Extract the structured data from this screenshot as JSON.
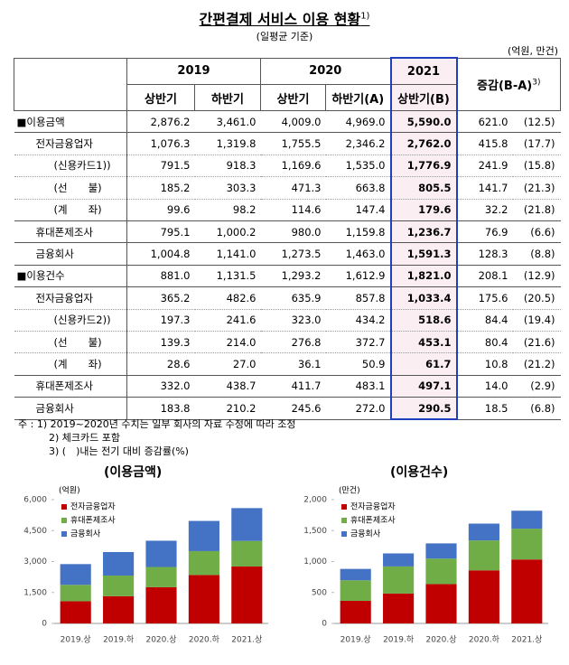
{
  "header": {
    "title": "간편결제 서비스 이용 현황",
    "title_note": "1)",
    "subtitle": "(일평균 기준)",
    "unit": "(억원, 만건)"
  },
  "table": {
    "years": [
      "2019",
      "2020",
      "2021"
    ],
    "halves": [
      "상반기",
      "하반기",
      "상반기",
      "하반기(A)",
      "상반기(B)"
    ],
    "change_header": "증감(B-A)",
    "change_note": "3)",
    "rows": [
      [
        "■이용금액",
        "2,876.2",
        "3,461.0",
        "4,009.0",
        "4,969.0",
        "5,590.0",
        "621.0",
        "(12.5)"
      ],
      [
        "전자금융업자",
        "1,076.3",
        "1,319.8",
        "1,755.5",
        "2,346.2",
        "2,762.0",
        "415.8",
        "(17.7)"
      ],
      [
        "(신용카드1))",
        "791.5",
        "918.3",
        "1,169.6",
        "1,535.0",
        "1,776.9",
        "241.9",
        "(15.8)"
      ],
      [
        "(선　　불)",
        "185.2",
        "303.3",
        "471.3",
        "663.8",
        "805.5",
        "141.7",
        "(21.3)"
      ],
      [
        "(계　　좌)",
        "99.6",
        "98.2",
        "114.6",
        "147.4",
        "179.6",
        "32.2",
        "(21.8)"
      ],
      [
        "휴대폰제조사",
        "795.1",
        "1,000.2",
        "980.0",
        "1,159.8",
        "1,236.7",
        "76.9",
        "(6.6)"
      ],
      [
        "금융회사",
        "1,004.8",
        "1,141.0",
        "1,273.5",
        "1,463.0",
        "1,591.3",
        "128.3",
        "(8.8)"
      ],
      [
        "■이용건수",
        "881.0",
        "1,131.5",
        "1,293.2",
        "1,612.9",
        "1,821.0",
        "208.1",
        "(12.9)"
      ],
      [
        "전자금융업자",
        "365.2",
        "482.6",
        "635.9",
        "857.8",
        "1,033.4",
        "175.6",
        "(20.5)"
      ],
      [
        "(신용카드2))",
        "197.3",
        "241.6",
        "323.0",
        "434.2",
        "518.6",
        "84.4",
        "(19.4)"
      ],
      [
        "(선　　불)",
        "139.3",
        "214.0",
        "276.8",
        "372.7",
        "453.1",
        "80.4",
        "(21.6)"
      ],
      [
        "(계　　좌)",
        "28.6",
        "27.0",
        "36.1",
        "50.9",
        "61.7",
        "10.8",
        "(21.2)"
      ],
      [
        "휴대폰제조사",
        "332.0",
        "438.7",
        "411.7",
        "483.1",
        "497.1",
        "14.0",
        "(2.9)"
      ],
      [
        "금융회사",
        "183.8",
        "210.2",
        "245.6",
        "272.0",
        "290.5",
        "18.5",
        "(6.8)"
      ]
    ]
  },
  "notes": [
    "주 : 1) 2019~2020년 수치는 일부 회사의 자료 수정에 따라 조정",
    "2) 체크카드 포함",
    "3) (　)내는 전기 대비 증감률(%)"
  ],
  "chart_data": [
    {
      "type": "bar",
      "stacked": true,
      "title": "(이용금액)",
      "unit_label": "(억원)",
      "categories": [
        "2019.상",
        "2019.하",
        "2020.상",
        "2020.하",
        "2021.상"
      ],
      "series": [
        {
          "name": "전자금융업자",
          "color": "#c00000",
          "values": [
            1076.3,
            1319.8,
            1755.5,
            2346.2,
            2762.0
          ]
        },
        {
          "name": "휴대폰제조사",
          "color": "#70ad47",
          "values": [
            795.1,
            1000.2,
            980.0,
            1159.8,
            1236.7
          ]
        },
        {
          "name": "금융회사",
          "color": "#4472c4",
          "values": [
            1004.8,
            1141.0,
            1273.5,
            1463.0,
            1591.3
          ]
        }
      ],
      "ylim": [
        0,
        6000
      ],
      "yticks": [
        0,
        {
          "value": 1500,
          "label": "1,500"
        },
        {
          "value": 3000,
          "label": "3,000"
        },
        {
          "value": 4500,
          "label": "4,500"
        },
        {
          "value": 6000,
          "label": "6,000"
        }
      ]
    },
    {
      "type": "bar",
      "stacked": true,
      "title": "(이용건수)",
      "unit_label": "(만건)",
      "categories": [
        "2019.상",
        "2019.하",
        "2020.상",
        "2020.하",
        "2021.상"
      ],
      "series": [
        {
          "name": "전자금융업자",
          "color": "#c00000",
          "values": [
            365.2,
            482.6,
            635.9,
            857.8,
            1033.4
          ]
        },
        {
          "name": "휴대폰제조사",
          "color": "#70ad47",
          "values": [
            332.0,
            438.7,
            411.7,
            483.1,
            497.1
          ]
        },
        {
          "name": "금융회사",
          "color": "#4472c4",
          "values": [
            183.8,
            210.2,
            245.6,
            272.0,
            290.5
          ]
        }
      ],
      "ylim": [
        0,
        2000
      ],
      "yticks": [
        0,
        500,
        {
          "value": 1000,
          "label": "1,000"
        },
        {
          "value": 1500,
          "label": "1,500"
        },
        {
          "value": 2000,
          "label": "2,000"
        }
      ]
    }
  ]
}
